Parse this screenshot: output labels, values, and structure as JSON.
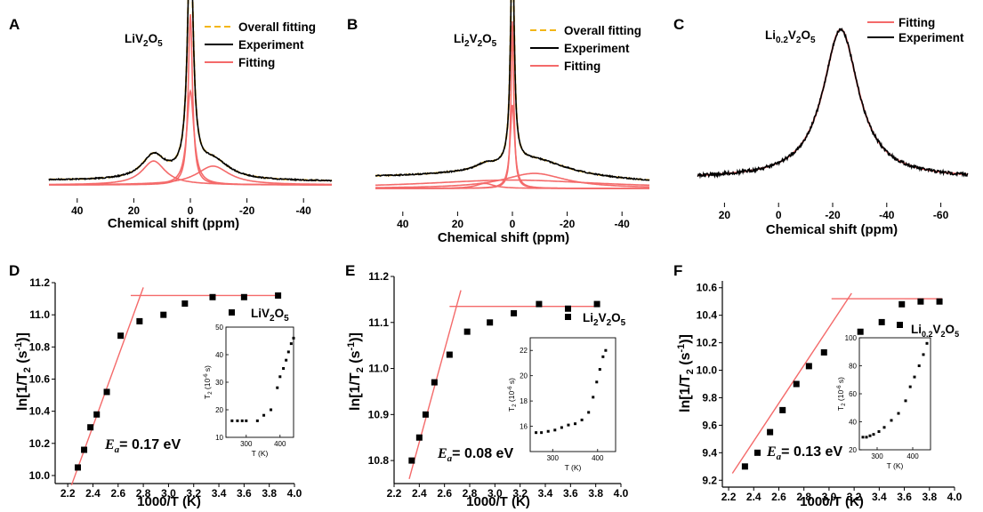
{
  "figure_colors": {
    "experiment": "#000000",
    "fitting": "#f46a6a",
    "overall": "#f2b617"
  },
  "chart_data": [
    {
      "panel": "A",
      "type": "line",
      "xlabel": "Chemical shift (ppm)",
      "xlim": [
        50,
        -50
      ],
      "xticks": [
        40,
        20,
        0,
        -20,
        -40
      ],
      "compound": "LiV2O5",
      "legend": [
        "Overall fitting",
        "Experiment",
        "Fitting"
      ],
      "components": [
        {
          "center": 0,
          "height": 1.0,
          "width": 0.9
        },
        {
          "center": 0,
          "height": 0.55,
          "width": 1.5
        },
        {
          "center": 13,
          "height": 0.14,
          "width": 5
        },
        {
          "center": -8,
          "height": 0.11,
          "width": 7
        }
      ]
    },
    {
      "panel": "B",
      "type": "line",
      "xlabel": "Chemical shift (ppm)",
      "xlim": [
        50,
        -50
      ],
      "xticks": [
        40,
        20,
        0,
        -20,
        -40
      ],
      "compound": "Li2V2O5",
      "legend": [
        "Overall fitting",
        "Experiment",
        "Fitting"
      ],
      "components": [
        {
          "center": 0,
          "height": 1.0,
          "width": 0.6
        },
        {
          "center": 0,
          "height": 0.5,
          "width": 1.0
        },
        {
          "center": -8,
          "height": 0.09,
          "width": 14
        },
        {
          "center": 10,
          "height": 0.03,
          "width": 4
        },
        {
          "center": 0,
          "height": 0.05,
          "width": 40
        }
      ]
    },
    {
      "panel": "C",
      "type": "line",
      "xlabel": "Chemical shift (ppm)",
      "xlim": [
        30,
        -70
      ],
      "xticks": [
        20,
        0,
        -20,
        -40,
        -60
      ],
      "compound": "Li0.2V2O5",
      "legend": [
        "Fitting",
        "Experiment"
      ],
      "components": [
        {
          "center": -23,
          "height": 1.0,
          "width": 8
        }
      ]
    },
    {
      "panel": "D",
      "type": "scatter",
      "xlabel": "1000/T (K)",
      "ylabel": "ln[1/T2 (s-1)]",
      "xlim": [
        2.1,
        4.0
      ],
      "ylim": [
        9.95,
        11.2
      ],
      "xticks": [
        2.2,
        2.4,
        2.6,
        2.8,
        3.0,
        3.2,
        3.4,
        3.6,
        3.8,
        4.0
      ],
      "yticks": [
        10.0,
        10.2,
        10.4,
        10.6,
        10.8,
        11.0,
        11.2
      ],
      "series_label": "LiV2O5",
      "activation_energy": "= 0.17 eV",
      "x": [
        2.28,
        2.33,
        2.38,
        2.43,
        2.51,
        2.62,
        2.77,
        2.96,
        3.13,
        3.35,
        3.6,
        3.87
      ],
      "y": [
        10.05,
        10.16,
        10.3,
        10.38,
        10.52,
        10.87,
        10.96,
        11.0,
        11.07,
        11.11,
        11.11,
        11.12
      ],
      "fit_line": {
        "x": [
          2.23,
          2.8
        ],
        "y": [
          9.94,
          11.17
        ]
      },
      "plateau_line": {
        "x": [
          2.7,
          3.88
        ],
        "y": [
          11.12,
          11.12
        ]
      },
      "inset": {
        "xlabel": "T (K)",
        "ylabel": "T2 (10-6 s)",
        "xlim": [
          240,
          440
        ],
        "ylim": [
          10,
          50
        ],
        "xticks": [
          300,
          400
        ],
        "yticks": [
          10,
          20,
          30,
          40,
          50
        ],
        "x": [
          258,
          274,
          288,
          300,
          333,
          352,
          373,
          392,
          400,
          410,
          418,
          425,
          433,
          440
        ],
        "y": [
          16,
          16,
          16,
          16,
          16,
          18,
          20,
          28,
          32,
          35,
          38,
          41,
          44,
          46
        ]
      }
    },
    {
      "panel": "E",
      "type": "scatter",
      "xlabel": "1000/T (K)",
      "ylabel": "ln[1/T2 (s-1)]",
      "xlim": [
        2.2,
        4.0
      ],
      "ylim": [
        10.75,
        11.2
      ],
      "xticks": [
        2.2,
        2.4,
        2.6,
        2.8,
        3.0,
        3.2,
        3.4,
        3.6,
        3.8,
        4.0
      ],
      "yticks": [
        10.8,
        10.9,
        11.0,
        11.1,
        11.2
      ],
      "series_label": "Li2V2O5",
      "activation_energy": "= 0.08 eV",
      "x": [
        2.34,
        2.4,
        2.45,
        2.52,
        2.64,
        2.78,
        2.96,
        3.15,
        3.35,
        3.58,
        3.81
      ],
      "y": [
        10.8,
        10.85,
        10.9,
        10.97,
        11.03,
        11.08,
        11.1,
        11.12,
        11.14,
        11.13,
        11.14
      ],
      "fit_line": {
        "x": [
          2.32,
          2.73
        ],
        "y": [
          10.76,
          11.17
        ]
      },
      "plateau_line": {
        "x": [
          2.64,
          3.82
        ],
        "y": [
          11.135,
          11.135
        ]
      },
      "inset": {
        "xlabel": "T (K)",
        "ylabel": "T2 (10-6 s)",
        "xlim": [
          250,
          440
        ],
        "ylim": [
          14,
          23
        ],
        "xticks": [
          300,
          400
        ],
        "yticks": [
          16,
          18,
          20,
          22
        ],
        "x": [
          263,
          275,
          290,
          305,
          320,
          335,
          350,
          365,
          380,
          390,
          398,
          405,
          412,
          418
        ],
        "y": [
          15.5,
          15.5,
          15.6,
          15.7,
          15.9,
          16.1,
          16.2,
          16.5,
          17.1,
          18.3,
          19.5,
          20.5,
          21.5,
          22.0
        ]
      }
    },
    {
      "panel": "F",
      "type": "scatter",
      "xlabel": "1000/T (K)",
      "ylabel": "ln[1/T2 (s-1)]",
      "xlim": [
        2.15,
        4.0
      ],
      "ylim": [
        9.15,
        10.65
      ],
      "xticks": [
        2.2,
        2.4,
        2.6,
        2.8,
        3.0,
        3.2,
        3.4,
        3.6,
        3.8,
        4.0
      ],
      "yticks": [
        9.2,
        9.4,
        9.6,
        9.8,
        10.0,
        10.2,
        10.4,
        10.6
      ],
      "series_label": "Li0.2V2O5",
      "activation_energy": "= 0.13 eV",
      "x": [
        2.33,
        2.43,
        2.53,
        2.63,
        2.74,
        2.84,
        2.96,
        3.25,
        3.42,
        3.58,
        3.73,
        3.88
      ],
      "y": [
        9.3,
        9.4,
        9.55,
        9.71,
        9.9,
        10.03,
        10.13,
        10.28,
        10.35,
        10.48,
        10.5,
        10.5
      ],
      "fit_line": {
        "x": [
          2.23,
          3.18
        ],
        "y": [
          9.25,
          10.56
        ]
      },
      "plateau_line": {
        "x": [
          3.02,
          3.9
        ],
        "y": [
          10.52,
          10.52
        ]
      },
      "inset": {
        "xlabel": "T (K)",
        "ylabel": "T2 (10-6 s)",
        "xlim": [
          250,
          450
        ],
        "ylim": [
          20,
          100
        ],
        "xticks": [
          300,
          400
        ],
        "yticks": [
          20,
          40,
          60,
          80,
          100
        ],
        "x": [
          260,
          270,
          280,
          290,
          305,
          320,
          340,
          360,
          380,
          393,
          405,
          418,
          430,
          440
        ],
        "y": [
          29,
          29,
          30,
          31,
          33,
          36,
          41,
          46,
          55,
          65,
          72,
          80,
          88,
          96
        ]
      }
    }
  ]
}
